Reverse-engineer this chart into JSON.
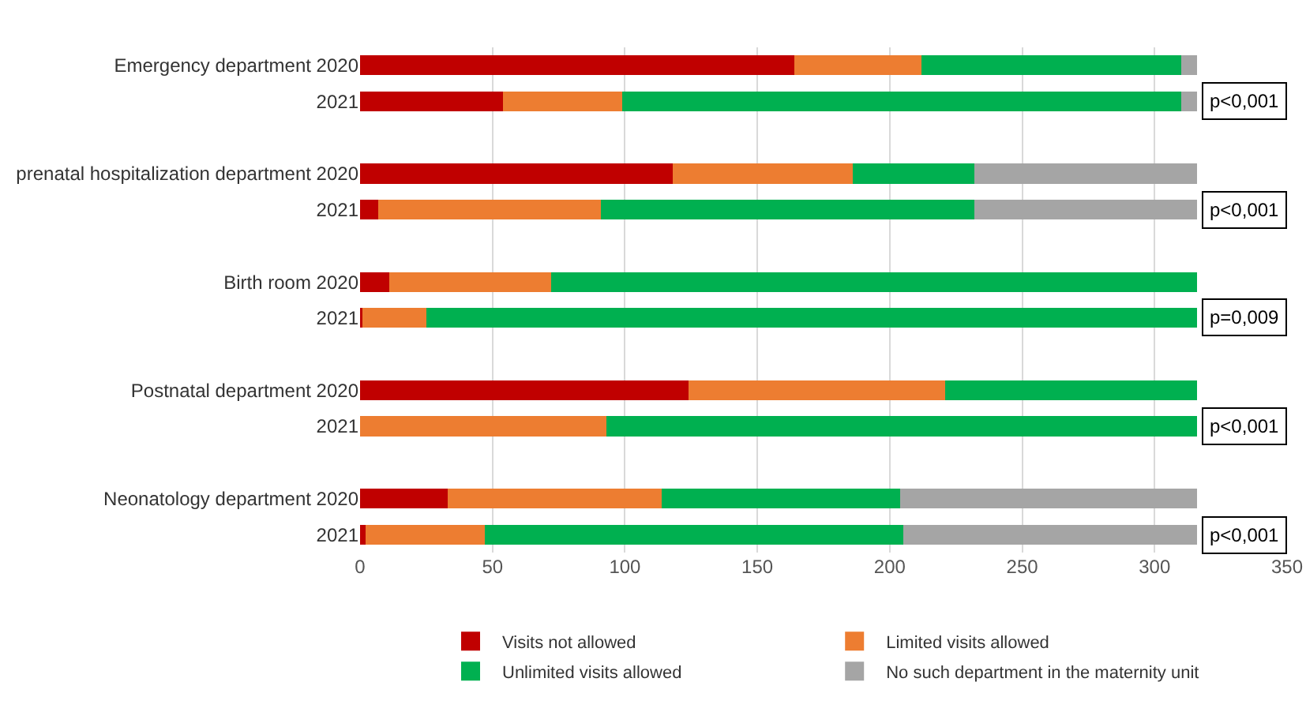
{
  "chart_data": {
    "type": "bar",
    "orientation": "horizontal",
    "stacked": true,
    "categories": [
      "Emergency department 2020",
      "2021",
      null,
      "prenatal hospitalization department 2020",
      "2021",
      null,
      "Birth room 2020",
      "2021",
      null,
      "Postnatal department 2020",
      "2021",
      null,
      "Neonatology department 2020",
      "2021"
    ],
    "series": [
      {
        "name": "Visits not allowed",
        "color": "#c00000",
        "values": [
          164,
          54,
          null,
          118,
          7,
          null,
          11,
          1,
          null,
          124,
          0,
          null,
          33,
          2
        ]
      },
      {
        "name": "Limited visits allowed",
        "color": "#ed7d31",
        "values": [
          48,
          45,
          null,
          68,
          84,
          null,
          61,
          24,
          null,
          97,
          93,
          null,
          81,
          45
        ]
      },
      {
        "name": "Unlimited visits allowed",
        "color": "#00b050",
        "values": [
          98,
          211,
          null,
          46,
          141,
          null,
          244,
          291,
          null,
          95,
          223,
          null,
          90,
          158
        ]
      },
      {
        "name": "No such department in the maternity unit",
        "color": "#a5a5a5",
        "values": [
          6,
          6,
          null,
          84,
          84,
          null,
          0,
          0,
          null,
          0,
          0,
          null,
          112,
          111
        ]
      }
    ],
    "xlim": [
      0,
      350
    ],
    "xticks": [
      0,
      50,
      100,
      150,
      200,
      250,
      300,
      350
    ],
    "grid": "x",
    "legend": "bottom",
    "annotations": [
      "p<0,001",
      "p<0,001",
      "p=0,009",
      "p<0,001",
      "p<0,001"
    ]
  }
}
